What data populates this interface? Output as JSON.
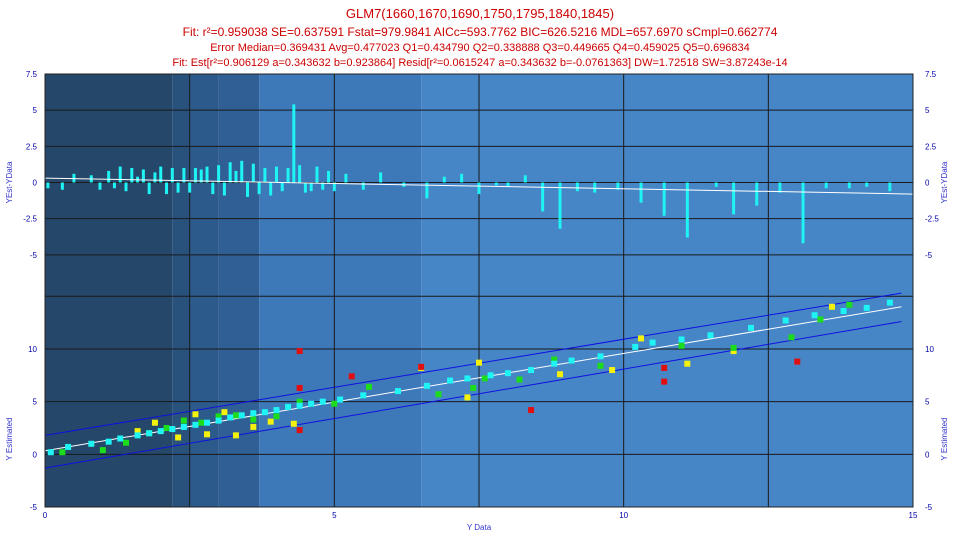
{
  "header": {
    "title": "GLM7(1660,1670,1690,1750,1795,1840,1845)",
    "fit_line": "Fit: r²=0.959038 SE=0.637591 Fstat=979.9841 AICc=593.7762 BIC=626.5216 MDL=657.6970 sCmpl=0.662774",
    "error_line": "Error Median=0.369431 Avg=0.477023 Q1=0.434790 Q2=0.338888 Q3=0.449665 Q4=0.459025 Q5=0.696834",
    "est_line": "Fit: Est[r²=0.906129 a=0.343632 b=0.923864] Resid[r²=0.0615247 a=0.343632 b=-0.0761363] DW=1.72518 SW=3.87243e-14"
  },
  "colors": {
    "band_colors": [
      "#25476a",
      "#28517c",
      "#2c5a8b",
      "#305f96",
      "#3468a4",
      "#3d78b8",
      "#4685c6"
    ],
    "grid": "#1a1a1a",
    "cyan": "#1ff4f4",
    "yellow": "#f4f20c",
    "green": "#1cdd1c",
    "red": "#e01010",
    "conf_line": "#1010e0",
    "fit_line": "#ffffff",
    "tick_text": "#0000aa"
  },
  "chart_data": [
    {
      "type": "bar",
      "name": "residual-panel",
      "ylabel": "YEst-YData",
      "ylim": [
        -7.5,
        7.5
      ],
      "yticks": [
        "7.5",
        "5",
        "2.5",
        "0",
        "-2.5",
        "-5"
      ],
      "grid": true,
      "x": [
        0.05,
        0.3,
        0.5,
        0.8,
        0.95,
        1.1,
        1.2,
        1.3,
        1.4,
        1.5,
        1.6,
        1.7,
        1.8,
        1.9,
        2.0,
        2.1,
        2.2,
        2.3,
        2.4,
        2.5,
        2.6,
        2.7,
        2.8,
        2.9,
        3.0,
        3.1,
        3.2,
        3.3,
        3.4,
        3.5,
        3.6,
        3.7,
        3.8,
        3.9,
        4.0,
        4.1,
        4.2,
        4.3,
        4.4,
        4.5,
        4.6,
        4.7,
        4.8,
        4.9,
        5.0,
        5.2,
        5.5,
        5.8,
        6.2,
        6.6,
        6.9,
        7.2,
        7.5,
        7.8,
        8.0,
        8.3,
        8.6,
        8.9,
        9.2,
        9.5,
        9.9,
        10.3,
        10.7,
        11.1,
        11.6,
        11.9,
        12.3,
        12.7,
        13.1,
        13.5,
        13.9,
        14.2,
        14.6
      ],
      "values": [
        -0.4,
        -0.5,
        0.6,
        0.5,
        -0.5,
        0.8,
        -0.4,
        1.1,
        -0.6,
        1.0,
        0.4,
        0.9,
        -0.8,
        0.7,
        1.1,
        -0.8,
        1.0,
        -0.7,
        1.0,
        -0.7,
        1.0,
        0.9,
        1.1,
        -0.8,
        1.2,
        -0.9,
        1.4,
        0.8,
        1.5,
        -1.0,
        1.3,
        -0.8,
        1.0,
        -0.9,
        1.1,
        -0.6,
        1.0,
        5.4,
        1.2,
        -0.7,
        -0.6,
        1.1,
        -0.5,
        0.8,
        -0.6,
        0.6,
        -0.5,
        0.7,
        -0.3,
        -1.1,
        0.4,
        0.6,
        -0.8,
        -0.2,
        -0.3,
        0.5,
        -2.0,
        -3.2,
        -0.6,
        -0.7,
        -0.5,
        -1.4,
        -2.3,
        -3.8,
        -0.3,
        -2.2,
        -1.6,
        -0.7,
        -4.2,
        -0.4,
        -0.4,
        -0.3,
        -0.6
      ],
      "fit_line": {
        "x": [
          0,
          15
        ],
        "y": [
          0.3,
          -0.8
        ]
      }
    },
    {
      "type": "scatter",
      "name": "estimate-panel",
      "xlabel": "Y Data",
      "ylabel": "Y Estimated",
      "xlim": [
        0,
        15
      ],
      "ylim": [
        -5,
        15.5
      ],
      "xticks": [
        "0",
        "5",
        "10",
        "15"
      ],
      "yticks": [
        "10",
        "5",
        "0",
        "-5"
      ],
      "grid": true,
      "fit_line": {
        "x": [
          0,
          14.8
        ],
        "y": [
          0.34,
          14.0
        ]
      },
      "conf_upper": {
        "x": [
          0,
          14.8
        ],
        "y": [
          1.8,
          15.3
        ]
      },
      "conf_lower": {
        "x": [
          0,
          14.8
        ],
        "y": [
          -1.3,
          12.6
        ]
      },
      "series": [
        {
          "color": "cyan",
          "points": [
            [
              0.1,
              0.2
            ],
            [
              0.4,
              0.7
            ],
            [
              0.8,
              1.0
            ],
            [
              1.1,
              1.2
            ],
            [
              1.3,
              1.5
            ],
            [
              1.6,
              1.8
            ],
            [
              1.8,
              2.0
            ],
            [
              2.0,
              2.2
            ],
            [
              2.2,
              2.4
            ],
            [
              2.4,
              2.6
            ],
            [
              2.6,
              2.8
            ],
            [
              2.8,
              3.0
            ],
            [
              3.0,
              3.2
            ],
            [
              3.2,
              3.5
            ],
            [
              3.4,
              3.7
            ],
            [
              3.6,
              3.9
            ],
            [
              3.8,
              4.0
            ],
            [
              4.0,
              4.2
            ],
            [
              4.2,
              4.5
            ],
            [
              4.4,
              4.6
            ],
            [
              4.6,
              4.8
            ],
            [
              4.8,
              5.0
            ],
            [
              5.1,
              5.2
            ],
            [
              5.5,
              5.6
            ],
            [
              6.1,
              6.0
            ],
            [
              6.6,
              6.5
            ],
            [
              7.0,
              7.0
            ],
            [
              7.3,
              7.2
            ],
            [
              7.7,
              7.5
            ],
            [
              8.0,
              7.7
            ],
            [
              8.4,
              8.0
            ],
            [
              8.8,
              8.6
            ],
            [
              9.1,
              8.9
            ],
            [
              9.6,
              9.3
            ],
            [
              10.2,
              10.2
            ],
            [
              10.5,
              10.6
            ],
            [
              11.0,
              10.9
            ],
            [
              11.5,
              11.3
            ],
            [
              12.2,
              12.0
            ],
            [
              12.8,
              12.7
            ],
            [
              13.3,
              13.2
            ],
            [
              13.8,
              13.6
            ],
            [
              14.2,
              13.9
            ],
            [
              14.6,
              14.4
            ]
          ]
        },
        {
          "color": "yellow",
          "points": [
            [
              1.6,
              2.2
            ],
            [
              1.9,
              3.0
            ],
            [
              2.3,
              1.6
            ],
            [
              2.6,
              3.8
            ],
            [
              2.8,
              1.9
            ],
            [
              3.1,
              4.0
            ],
            [
              3.3,
              1.8
            ],
            [
              3.6,
              2.6
            ],
            [
              3.9,
              3.1
            ],
            [
              4.3,
              2.9
            ],
            [
              6.5,
              8.2
            ],
            [
              7.3,
              5.4
            ],
            [
              7.5,
              8.7
            ],
            [
              8.9,
              7.6
            ],
            [
              9.8,
              8.0
            ],
            [
              10.3,
              11.0
            ],
            [
              11.1,
              8.6
            ],
            [
              11.9,
              9.8
            ],
            [
              13.6,
              14.0
            ]
          ]
        },
        {
          "color": "green",
          "points": [
            [
              0.3,
              0.2
            ],
            [
              1.0,
              0.4
            ],
            [
              1.4,
              1.1
            ],
            [
              1.8,
              2.0
            ],
            [
              2.1,
              2.5
            ],
            [
              2.4,
              3.2
            ],
            [
              2.7,
              3.0
            ],
            [
              3.0,
              3.6
            ],
            [
              3.3,
              3.7
            ],
            [
              3.6,
              3.3
            ],
            [
              4.0,
              3.6
            ],
            [
              4.4,
              5.0
            ],
            [
              5.0,
              4.8
            ],
            [
              5.6,
              6.4
            ],
            [
              6.8,
              5.7
            ],
            [
              7.4,
              6.3
            ],
            [
              7.6,
              7.2
            ],
            [
              8.2,
              7.1
            ],
            [
              8.8,
              9.0
            ],
            [
              9.6,
              8.4
            ],
            [
              11.0,
              10.3
            ],
            [
              11.9,
              10.1
            ],
            [
              12.9,
              11.1
            ],
            [
              13.4,
              12.8
            ],
            [
              13.9,
              14.2
            ]
          ]
        },
        {
          "color": "red",
          "points": [
            [
              4.4,
              9.8
            ],
            [
              4.4,
              6.3
            ],
            [
              4.4,
              2.3
            ],
            [
              5.3,
              7.4
            ],
            [
              6.5,
              8.3
            ],
            [
              8.4,
              4.2
            ],
            [
              10.7,
              6.9
            ],
            [
              10.7,
              8.2
            ],
            [
              13.0,
              8.8
            ]
          ]
        }
      ]
    }
  ],
  "background_bands": [
    {
      "x0": 0,
      "x1": 2.2
    },
    {
      "x0": 2.2,
      "x1": 2.5
    },
    {
      "x0": 2.5,
      "x1": 3.0
    },
    {
      "x0": 3.0,
      "x1": 3.7
    },
    {
      "x0": 3.7,
      "x1": 6.5
    },
    {
      "x0": 6.5,
      "x1": 15
    }
  ]
}
